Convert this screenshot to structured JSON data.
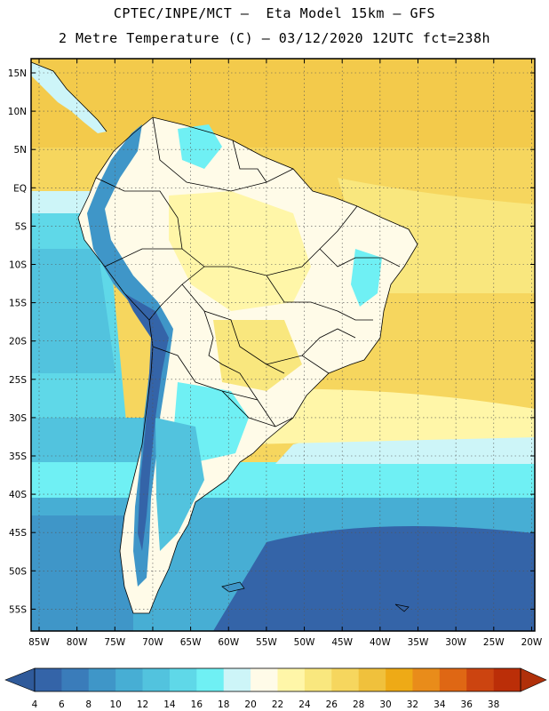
{
  "header": {
    "line1": "CPTEC/INPE/MCT –  Eta Model 15km – GFS",
    "line2": "2 Metre Temperature (C) – 03/12/2020 12UTC fct=238h"
  },
  "map": {
    "lat_labels": [
      "15N",
      "10N",
      "5N",
      "EQ",
      "5S",
      "10S",
      "15S",
      "20S",
      "25S",
      "30S",
      "35S",
      "40S",
      "45S",
      "50S",
      "55S"
    ],
    "lon_labels": [
      "85W",
      "80W",
      "75W",
      "70W",
      "65W",
      "60W",
      "55W",
      "50W",
      "45W",
      "40W",
      "35W",
      "30W",
      "25W",
      "20W"
    ],
    "gridlines": "dotted"
  },
  "colorbar": {
    "ticks": [
      "4",
      "6",
      "8",
      "10",
      "12",
      "14",
      "16",
      "18",
      "20",
      "22",
      "24",
      "26",
      "28",
      "30",
      "32",
      "34",
      "36",
      "38"
    ],
    "colors": [
      "#3464a8",
      "#3a7cba",
      "#3f96c8",
      "#47aed4",
      "#52c3de",
      "#5fd8e8",
      "#6ff0f4",
      "#cdf5f8",
      "#fffbe8",
      "#fff6a8",
      "#f9e77e",
      "#f6d65e",
      "#f0c13c",
      "#eeaa16",
      "#e98c1a",
      "#df6714",
      "#cc4410",
      "#bb2e08"
    ],
    "below_color": "#2f5a9a",
    "above_color": "#b0300a"
  }
}
